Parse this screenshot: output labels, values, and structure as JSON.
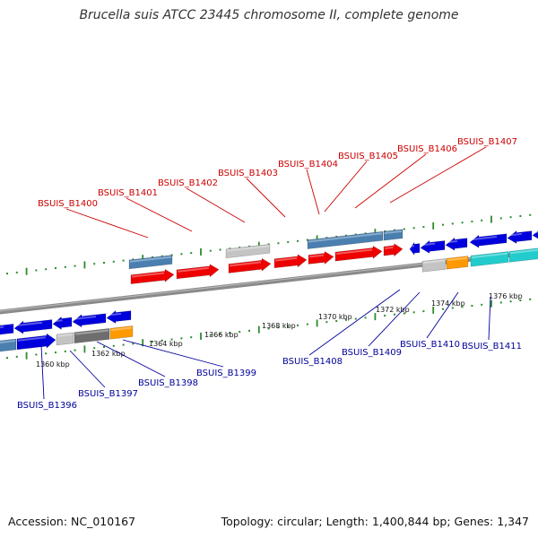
{
  "title": "Brucella suis ATCC 23445 chromosome II, complete genome",
  "footer": {
    "accession": "Accession: NC_010167",
    "stats": "Topology: circular; Length: 1,400,844 bp; Genes: 1,347"
  },
  "colors": {
    "upper_labels": "#cc0000",
    "lower_labels": "#000099",
    "red_gene": "#ee0000",
    "blue_gene": "#0000dd",
    "steel_gene": "#4a7fb0",
    "gray_gene": "#c4c4c4",
    "dark_gray_gene": "#6e6e6e",
    "orange_gene": "#ff9900",
    "cyan_gene": "#22cccc",
    "backbone": "#8a8a8a",
    "ticks": "#2e8b2e"
  },
  "scale_labels": [
    "1360 kbp",
    "1362 kbp",
    "1364 kbp",
    "1366 kbp",
    "1368 kbp",
    "1370 kbp",
    "1372 kbp",
    "1374 kbp",
    "1376 kbp"
  ],
  "upper_gene_labels": [
    "BSUIS_B1400",
    "BSUIS_B1401",
    "BSUIS_B1402",
    "BSUIS_B1403",
    "BSUIS_B1404",
    "BSUIS_B1405",
    "BSUIS_B1406",
    "BSUIS_B1407"
  ],
  "lower_gene_labels": [
    "BSUIS_B1396",
    "BSUIS_B1397",
    "BSUIS_B1398",
    "BSUIS_B1399",
    "BSUIS_B1408",
    "BSUIS_B1409",
    "BSUIS_B1410",
    "BSUIS_B1411"
  ]
}
